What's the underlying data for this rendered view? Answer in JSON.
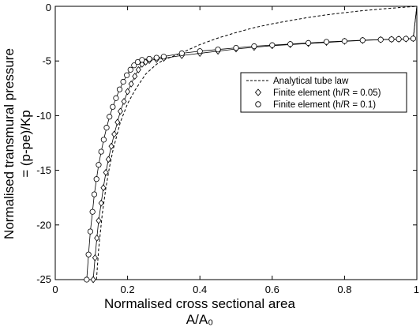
{
  "chart_data": {
    "type": "line",
    "title": "",
    "xlabel_line1": "Normalised cross sectional area",
    "xlabel_line2": "A/A₀",
    "ylabel_line1": "Normalised transmural pressure",
    "ylabel_line2": "= (p-pe)/Kp",
    "xlim": [
      0,
      1
    ],
    "ylim": [
      -25,
      0
    ],
    "xticks": [
      "0",
      "0.2",
      "0.4",
      "0.6",
      "0.8",
      "1"
    ],
    "yticks": [
      "0",
      "-5",
      "-10",
      "-15",
      "-20",
      "-25"
    ],
    "legend_position": "right, middle",
    "series": [
      {
        "name": "Analytical tube law",
        "style": "dashed",
        "marker": "none",
        "points": [
          [
            0.114,
            -25
          ],
          [
            0.12,
            -22.2
          ],
          [
            0.13,
            -19
          ],
          [
            0.14,
            -16.6
          ],
          [
            0.15,
            -14.7
          ],
          [
            0.16,
            -13.1
          ],
          [
            0.18,
            -10.6
          ],
          [
            0.2,
            -8.9
          ],
          [
            0.22,
            -7.7
          ],
          [
            0.25,
            -6.2
          ],
          [
            0.28,
            -5.3
          ],
          [
            0.3,
            -4.9
          ],
          [
            0.35,
            -4.25
          ],
          [
            0.4,
            -3.5
          ],
          [
            0.45,
            -2.9
          ],
          [
            0.5,
            -2.4
          ],
          [
            0.55,
            -1.95
          ],
          [
            0.6,
            -1.6
          ],
          [
            0.65,
            -1.3
          ],
          [
            0.7,
            -1.02
          ],
          [
            0.75,
            -0.78
          ],
          [
            0.8,
            -0.58
          ],
          [
            0.85,
            -0.4
          ],
          [
            0.9,
            -0.25
          ],
          [
            0.95,
            -0.12
          ],
          [
            1.0,
            0
          ]
        ]
      },
      {
        "name": "Finite element (h/R = 0.05)",
        "style": "solid",
        "marker": "diamond",
        "points": [
          [
            0.105,
            -25
          ],
          [
            0.11,
            -23
          ],
          [
            0.115,
            -21.2
          ],
          [
            0.12,
            -19.6
          ],
          [
            0.127,
            -18
          ],
          [
            0.133,
            -16.6
          ],
          [
            0.14,
            -15.2
          ],
          [
            0.147,
            -14
          ],
          [
            0.155,
            -12.8
          ],
          [
            0.163,
            -11.7
          ],
          [
            0.172,
            -10.6
          ],
          [
            0.18,
            -9.6
          ],
          [
            0.19,
            -8.7
          ],
          [
            0.2,
            -7.8
          ],
          [
            0.21,
            -7.1
          ],
          [
            0.22,
            -6.4
          ],
          [
            0.23,
            -5.8
          ],
          [
            0.24,
            -5.3
          ],
          [
            0.25,
            -5.1
          ],
          [
            0.26,
            -4.95
          ],
          [
            0.28,
            -4.85
          ],
          [
            0.3,
            -4.75
          ],
          [
            0.35,
            -4.5
          ],
          [
            0.4,
            -4.3
          ],
          [
            0.45,
            -4.1
          ],
          [
            0.5,
            -3.9
          ],
          [
            0.55,
            -3.75
          ],
          [
            0.6,
            -3.6
          ],
          [
            0.65,
            -3.5
          ],
          [
            0.7,
            -3.4
          ],
          [
            0.75,
            -3.3
          ],
          [
            0.8,
            -3.2
          ],
          [
            0.85,
            -3.12
          ],
          [
            0.9,
            -3.05
          ],
          [
            0.93,
            -3.02
          ],
          [
            0.95,
            -3
          ],
          [
            0.97,
            -2.98
          ],
          [
            0.99,
            -2.95
          ],
          [
            1.0,
            0
          ]
        ]
      },
      {
        "name": "Finite element (h/R = 0.1)",
        "style": "solid",
        "marker": "circle",
        "points": [
          [
            0.087,
            -25
          ],
          [
            0.092,
            -22.7
          ],
          [
            0.097,
            -20.6
          ],
          [
            0.103,
            -18.8
          ],
          [
            0.108,
            -17.2
          ],
          [
            0.114,
            -15.8
          ],
          [
            0.12,
            -14.5
          ],
          [
            0.127,
            -13.3
          ],
          [
            0.134,
            -12.2
          ],
          [
            0.142,
            -11.1
          ],
          [
            0.15,
            -10.1
          ],
          [
            0.159,
            -9.2
          ],
          [
            0.168,
            -8.4
          ],
          [
            0.178,
            -7.6
          ],
          [
            0.188,
            -6.9
          ],
          [
            0.198,
            -6.3
          ],
          [
            0.208,
            -5.8
          ],
          [
            0.218,
            -5.4
          ],
          [
            0.228,
            -5.1
          ],
          [
            0.24,
            -4.9
          ],
          [
            0.26,
            -4.8
          ],
          [
            0.28,
            -4.7
          ],
          [
            0.3,
            -4.6
          ],
          [
            0.35,
            -4.3
          ],
          [
            0.4,
            -4.1
          ],
          [
            0.45,
            -3.95
          ],
          [
            0.5,
            -3.8
          ],
          [
            0.55,
            -3.65
          ],
          [
            0.6,
            -3.55
          ],
          [
            0.65,
            -3.45
          ],
          [
            0.7,
            -3.35
          ],
          [
            0.75,
            -3.25
          ],
          [
            0.8,
            -3.18
          ],
          [
            0.85,
            -3.1
          ],
          [
            0.9,
            -3.05
          ],
          [
            0.93,
            -3.02
          ],
          [
            0.95,
            -3
          ],
          [
            0.97,
            -2.97
          ],
          [
            0.99,
            -2.95
          ],
          [
            1.0,
            0
          ]
        ]
      }
    ]
  }
}
